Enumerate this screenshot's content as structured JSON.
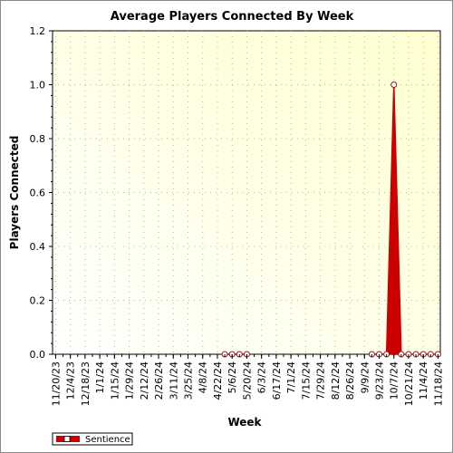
{
  "chart_data": {
    "type": "area",
    "title": "Average Players Connected By Week",
    "xlabel": "Week",
    "ylabel": "Players Connected",
    "ylim": [
      0,
      1.2
    ],
    "yticks": [
      "0.0",
      "0.2",
      "0.4",
      "0.6",
      "0.8",
      "1.0",
      "1.2"
    ],
    "x_tick_labels": [
      "11/20/23",
      "12/4/23",
      "12/18/23",
      "1/1/24",
      "1/15/24",
      "1/29/24",
      "2/12/24",
      "2/26/24",
      "3/11/24",
      "3/25/24",
      "4/8/24",
      "4/22/24",
      "5/6/24",
      "5/20/24",
      "6/3/24",
      "6/17/24",
      "7/1/24",
      "7/15/24",
      "7/29/24",
      "8/12/24",
      "8/26/24",
      "9/9/24",
      "9/23/24",
      "10/7/24",
      "10/21/24",
      "11/4/24",
      "11/18/24"
    ],
    "x_start": "11/20/23",
    "x_end": "11/18/24",
    "grid": true,
    "legend_position": "bottom-left",
    "series": [
      {
        "name": "Sentience",
        "color": "#cc0000",
        "points": [
          {
            "x": "4/29/24",
            "y": 0
          },
          {
            "x": "5/6/24",
            "y": 0
          },
          {
            "x": "5/13/24",
            "y": 0
          },
          {
            "x": "5/20/24",
            "y": 0
          },
          {
            "x": "9/16/24",
            "y": 0
          },
          {
            "x": "9/23/24",
            "y": 0
          },
          {
            "x": "9/30/24",
            "y": 0
          },
          {
            "x": "10/7/24",
            "y": 1.0
          },
          {
            "x": "10/14/24",
            "y": 0
          },
          {
            "x": "10/21/24",
            "y": 0
          },
          {
            "x": "10/28/24",
            "y": 0
          },
          {
            "x": "11/4/24",
            "y": 0
          },
          {
            "x": "11/11/24",
            "y": 0
          },
          {
            "x": "11/18/24",
            "y": 0
          }
        ]
      }
    ]
  }
}
